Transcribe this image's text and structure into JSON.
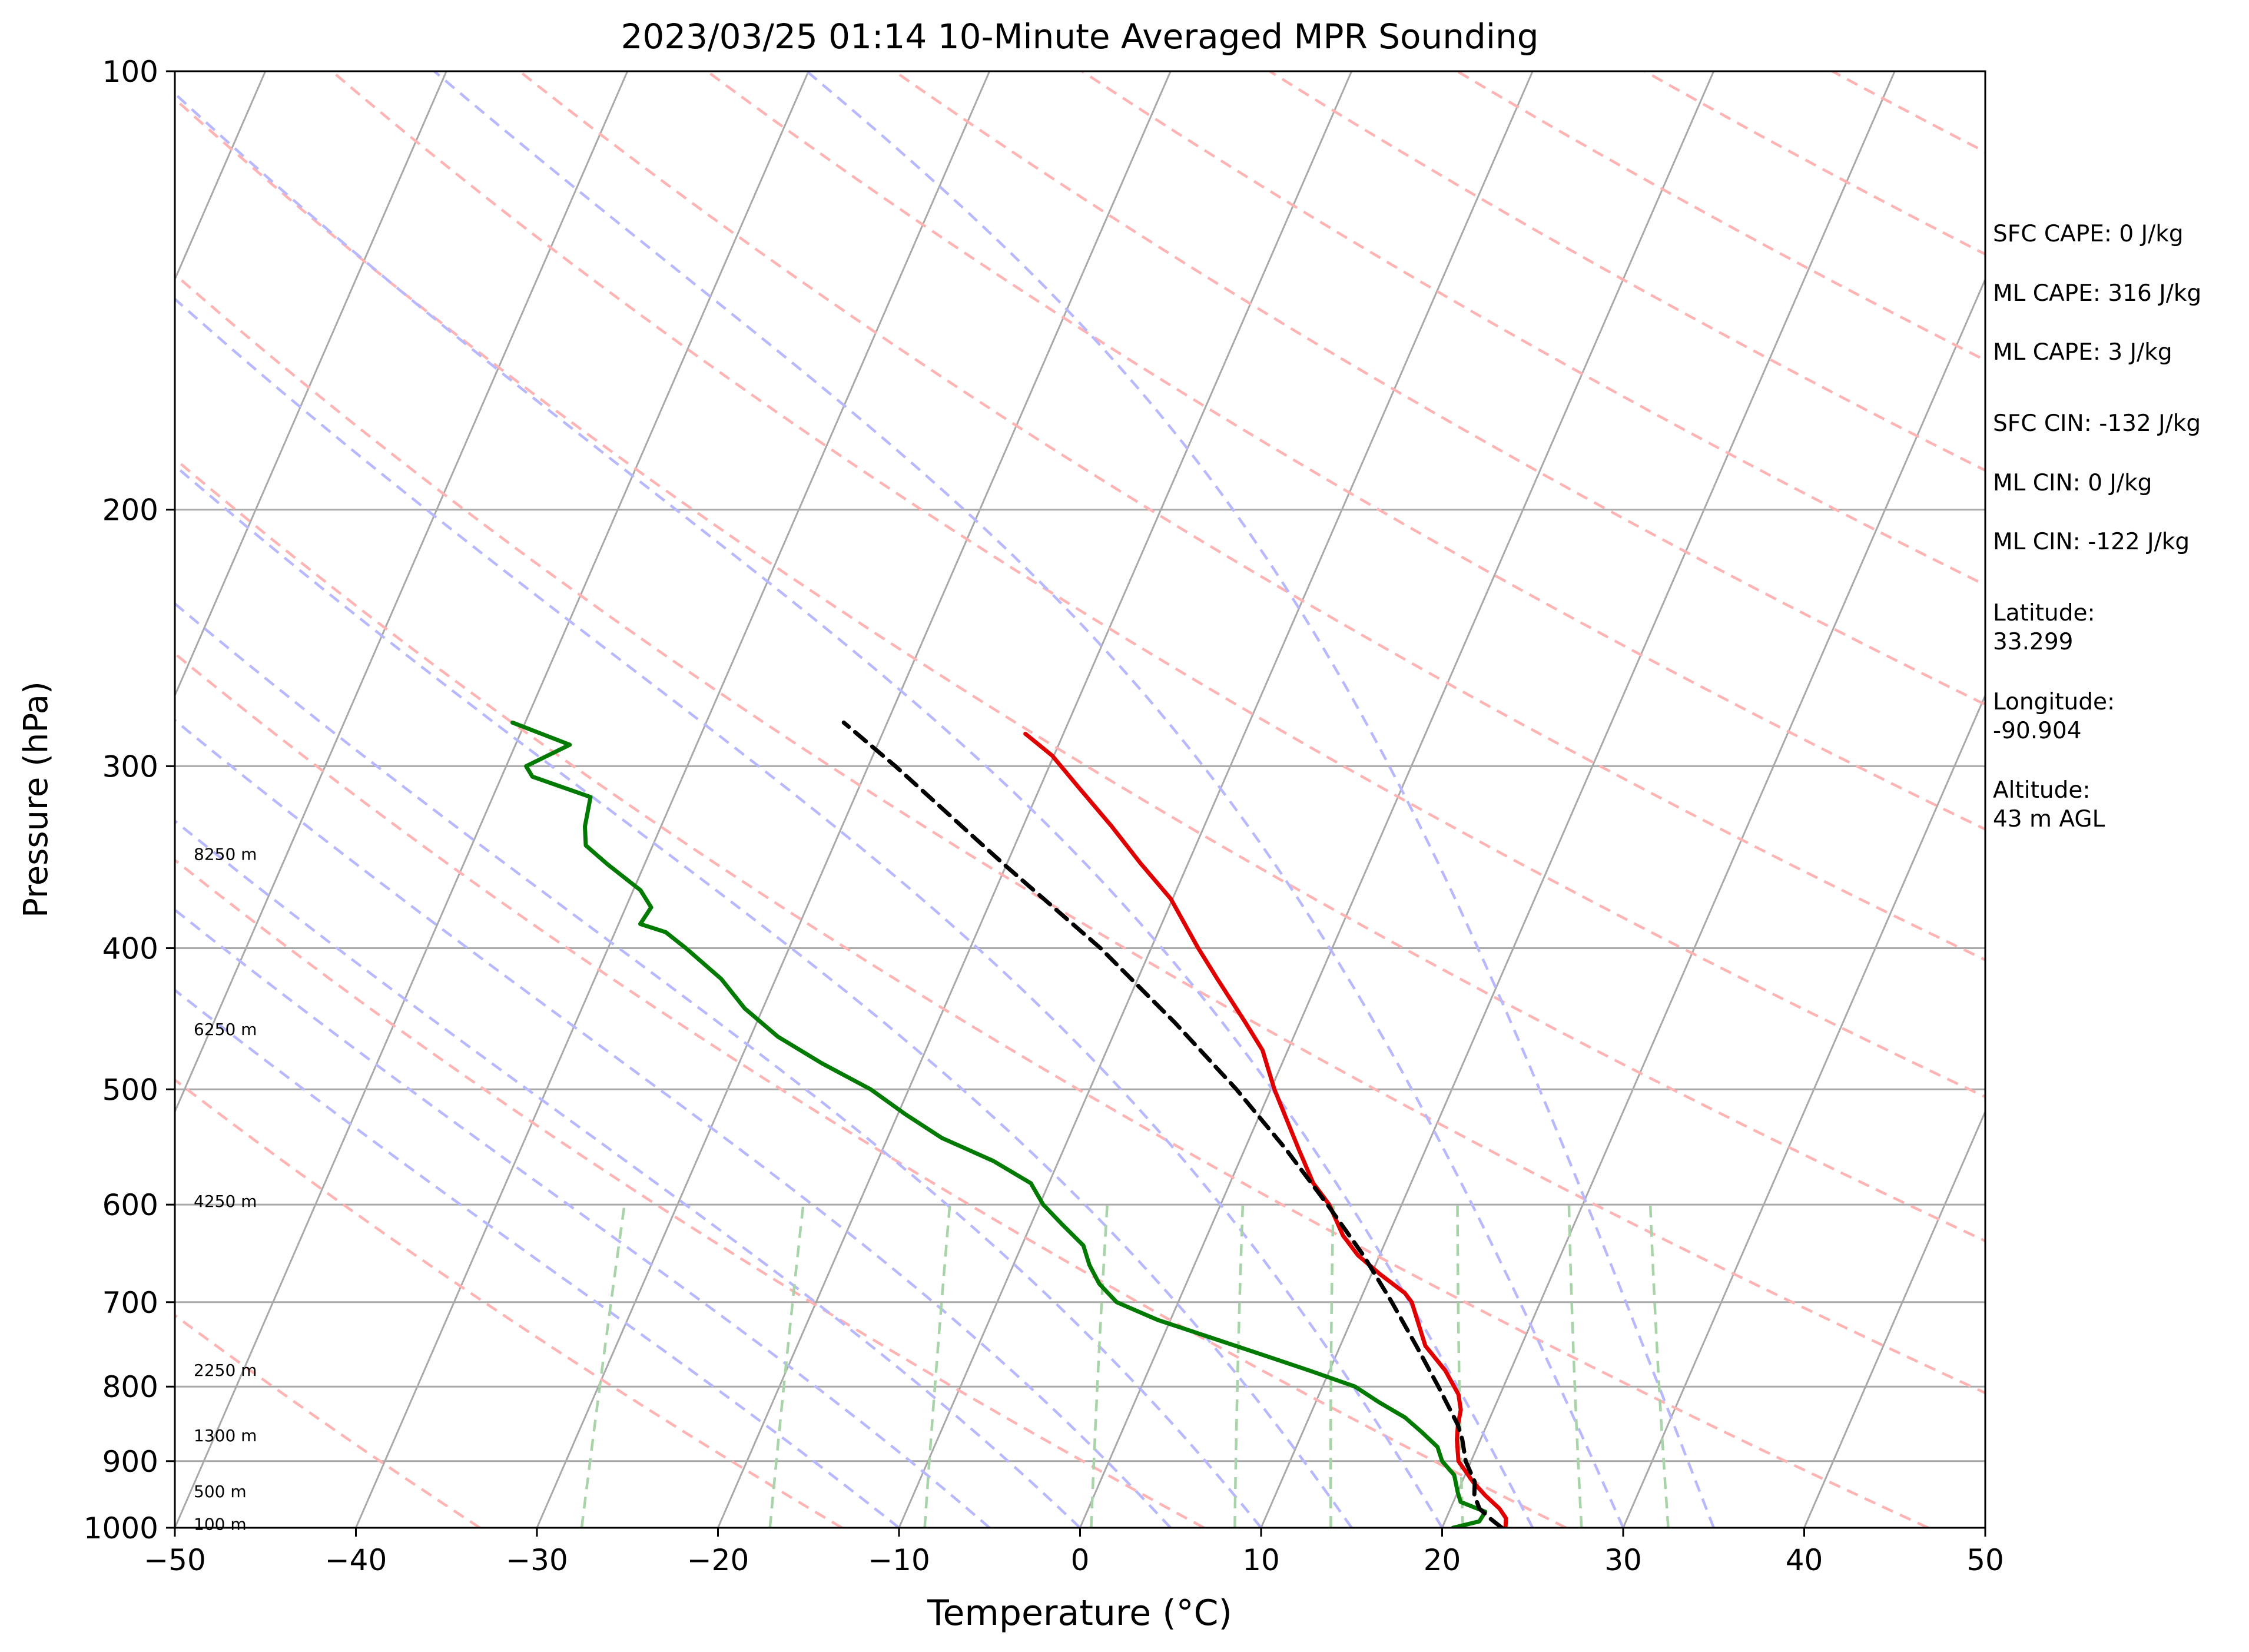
{
  "chart_data": {
    "type": "skew-t",
    "title": "2023/03/25 01:14 10-Minute Averaged MPR Sounding",
    "xlabel": "Temperature (°C)",
    "ylabel": "Pressure (hPa)",
    "xlim": [
      -50,
      50
    ],
    "ylim": [
      1000,
      100
    ],
    "y_scale": "log",
    "x_ticks": [
      -50,
      -40,
      -30,
      -20,
      -10,
      0,
      10,
      20,
      30,
      40,
      50
    ],
    "x_tick_labels": [
      "−50",
      "−40",
      "−30",
      "−20",
      "−10",
      "0",
      "10",
      "20",
      "30",
      "40",
      "50"
    ],
    "y_ticks": [
      1000,
      900,
      800,
      700,
      600,
      500,
      400,
      300,
      200,
      100
    ],
    "y_tick_labels": [
      "1000",
      "900",
      "800",
      "700",
      "600",
      "500",
      "400",
      "300",
      "200",
      "100"
    ],
    "grid": true,
    "height_labels": [
      {
        "p": 995,
        "text": "100 m"
      },
      {
        "p": 945,
        "text": "500 m"
      },
      {
        "p": 865,
        "text": "1300 m"
      },
      {
        "p": 780,
        "text": "2250 m"
      },
      {
        "p": 597,
        "text": "4250 m"
      },
      {
        "p": 455,
        "text": "6250 m"
      },
      {
        "p": 345,
        "text": "8250 m"
      }
    ],
    "series": [
      {
        "color": "#e00000",
        "style": "solid",
        "points": [
          [
            1000,
            23.5
          ],
          [
            985,
            23.3
          ],
          [
            970,
            22.7
          ],
          [
            950,
            21.6
          ],
          [
            930,
            20.6
          ],
          [
            900,
            19.3
          ],
          [
            870,
            18.7
          ],
          [
            850,
            18.4
          ],
          [
            830,
            18.2
          ],
          [
            810,
            17.7
          ],
          [
            780,
            16.4
          ],
          [
            750,
            14.7
          ],
          [
            700,
            12.9
          ],
          [
            690,
            12.3
          ],
          [
            670,
            10.5
          ],
          [
            650,
            8.8
          ],
          [
            630,
            7.5
          ],
          [
            600,
            6.0
          ],
          [
            580,
            4.6
          ],
          [
            550,
            3.0
          ],
          [
            500,
            0.2
          ],
          [
            470,
            -1.4
          ],
          [
            450,
            -3.0
          ],
          [
            420,
            -5.6
          ],
          [
            400,
            -7.4
          ],
          [
            370,
            -10.1
          ],
          [
            350,
            -12.6
          ],
          [
            330,
            -15.1
          ],
          [
            310,
            -17.9
          ],
          [
            295,
            -20.1
          ],
          [
            285,
            -22.1
          ]
        ]
      },
      {
        "color": "#007a00",
        "style": "solid",
        "points": [
          [
            1000,
            20.6
          ],
          [
            990,
            21.9
          ],
          [
            975,
            22.0
          ],
          [
            960,
            20.4
          ],
          [
            945,
            20.0
          ],
          [
            920,
            19.4
          ],
          [
            900,
            18.4
          ],
          [
            880,
            17.8
          ],
          [
            860,
            16.6
          ],
          [
            840,
            15.3
          ],
          [
            820,
            13.5
          ],
          [
            800,
            11.8
          ],
          [
            780,
            8.9
          ],
          [
            760,
            5.8
          ],
          [
            740,
            2.6
          ],
          [
            720,
            -0.7
          ],
          [
            700,
            -3.4
          ],
          [
            680,
            -4.8
          ],
          [
            660,
            -5.8
          ],
          [
            640,
            -6.6
          ],
          [
            620,
            -8.2
          ],
          [
            600,
            -9.8
          ],
          [
            580,
            -11.0
          ],
          [
            560,
            -13.6
          ],
          [
            540,
            -17.0
          ],
          [
            520,
            -19.6
          ],
          [
            500,
            -22.1
          ],
          [
            480,
            -25.4
          ],
          [
            460,
            -28.5
          ],
          [
            440,
            -31.0
          ],
          [
            420,
            -33.0
          ],
          [
            400,
            -35.7
          ],
          [
            390,
            -37.2
          ],
          [
            385,
            -38.8
          ],
          [
            375,
            -38.6
          ],
          [
            365,
            -39.6
          ],
          [
            350,
            -42.1
          ],
          [
            340,
            -43.7
          ],
          [
            330,
            -44.2
          ],
          [
            315,
            -44.6
          ],
          [
            305,
            -48.3
          ],
          [
            300,
            -48.9
          ],
          [
            290,
            -47.0
          ],
          [
            280,
            -50.7
          ]
        ]
      },
      {
        "color": "#000000",
        "style": "dashed",
        "points": [
          [
            1000,
            23.3
          ],
          [
            985,
            22.4
          ],
          [
            970,
            21.6
          ],
          [
            950,
            21.0
          ],
          [
            930,
            20.7
          ],
          [
            900,
            19.7
          ],
          [
            870,
            19.0
          ],
          [
            850,
            18.4
          ],
          [
            800,
            16.4
          ],
          [
            750,
            14.2
          ],
          [
            700,
            11.8
          ],
          [
            650,
            9.1
          ],
          [
            600,
            5.9
          ],
          [
            550,
            2.3
          ],
          [
            500,
            -1.9
          ],
          [
            450,
            -6.9
          ],
          [
            400,
            -12.8
          ],
          [
            350,
            -20.2
          ],
          [
            300,
            -28.5
          ],
          [
            280,
            -32.4
          ]
        ]
      }
    ],
    "dry_adiabats_theta_K": [
      220,
      240,
      260,
      280,
      300,
      320,
      340,
      360,
      380,
      400,
      420,
      440,
      460,
      480,
      500,
      520,
      540,
      560
    ],
    "moist_adiabats_thetae_C": [
      -10,
      -5,
      0,
      5,
      10,
      15,
      20,
      25,
      30,
      35
    ],
    "mixing_ratio_lines_gkg": [
      0.4,
      1,
      2,
      4,
      7,
      10,
      16,
      24,
      32
    ],
    "line_colors": {
      "isotherms": "#a9a9a9",
      "isobars": "#a9a9a9",
      "dry_adiabats": "#ffb3b3",
      "moist_adiabats": "#b8b8ff",
      "mixing_ratio": "#a9d4a9"
    }
  },
  "side_panel": [
    "SFC CAPE: 0 J/kg",
    "ML CAPE: 316 J/kg",
    "ML CAPE: 3 J/kg",
    "SFC CIN: -132 J/kg",
    "ML CIN: 0 J/kg",
    "ML CIN: -122 J/kg",
    "Latitude:",
    "33.299",
    "Longitude:",
    "-90.904",
    "Altitude:",
    "43 m AGL"
  ]
}
